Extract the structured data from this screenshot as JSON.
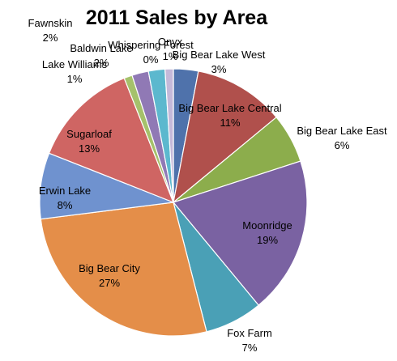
{
  "chart_data": {
    "type": "pie",
    "title": "2011 Sales by Area",
    "legend": "none",
    "slices": [
      {
        "label": "Big Bear Lake West",
        "value": 3,
        "pct_label": "3%",
        "color": "#4F72AB"
      },
      {
        "label": "Big Bear Lake Central",
        "value": 11,
        "pct_label": "11%",
        "color": "#B0504C"
      },
      {
        "label": "Big Bear Lake East",
        "value": 6,
        "pct_label": "6%",
        "color": "#8CAD4C"
      },
      {
        "label": "Moonridge",
        "value": 19,
        "pct_label": "19%",
        "color": "#7A62A2"
      },
      {
        "label": "Fox Farm",
        "value": 7,
        "pct_label": "7%",
        "color": "#4AA0B6"
      },
      {
        "label": "Big Bear City",
        "value": 27,
        "pct_label": "27%",
        "color": "#E48E49"
      },
      {
        "label": "Erwin Lake",
        "value": 8,
        "pct_label": "8%",
        "color": "#6F92CF"
      },
      {
        "label": "Sugarloaf",
        "value": 13,
        "pct_label": "13%",
        "color": "#CF6563"
      },
      {
        "label": "Lake Williams",
        "value": 1,
        "pct_label": "1%",
        "color": "#A5C16B"
      },
      {
        "label": "Fawnskin",
        "value": 2,
        "pct_label": "2%",
        "color": "#9079B5"
      },
      {
        "label": "Baldwin Lake",
        "value": 2,
        "pct_label": "2%",
        "color": "#5CB8CE"
      },
      {
        "label": "Whispering Forest",
        "value": 0,
        "pct_label": "0%",
        "color": "#93A9D6"
      },
      {
        "label": "Onyx",
        "value": 1,
        "pct_label": "1%",
        "color": "#C4B9D9"
      }
    ]
  }
}
